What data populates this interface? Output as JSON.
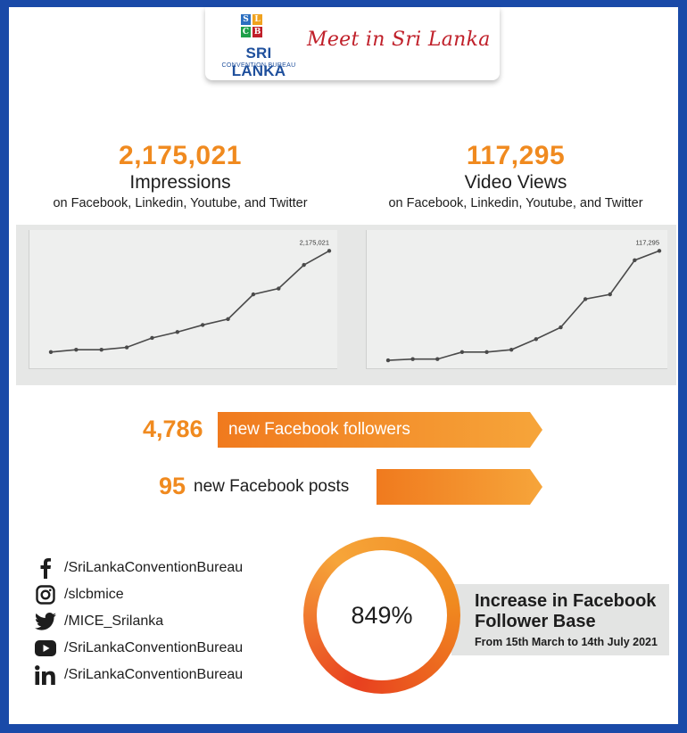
{
  "header": {
    "logo_letters": [
      "S",
      "L",
      "C",
      "B"
    ],
    "logo_name": "SRI LANKA",
    "logo_sub": "CONVENTION BUREAU",
    "tagline": "Meet in Sri Lanka",
    "colors": {
      "blue": "#1e4f9c",
      "red": "#c0202a",
      "frame": "#1a4aa8"
    }
  },
  "impressions": {
    "value": "2,175,021",
    "label": "Impressions",
    "platforms": "on Facebook, Linkedin, Youtube, and Twitter"
  },
  "video_views": {
    "value": "117,295",
    "label": "Video Views",
    "platforms": "on Facebook, Linkedin, Youtube, and Twitter"
  },
  "chart_data": [
    {
      "type": "line",
      "end_label": "2,175,021",
      "x": [
        1,
        2,
        3,
        4,
        5,
        6,
        7,
        8,
        9,
        10,
        11,
        12
      ],
      "values": [
        10,
        12,
        12,
        14,
        22,
        27,
        33,
        38,
        59,
        64,
        84,
        96
      ],
      "ylim": [
        0,
        100
      ],
      "grid": false,
      "color": "#4a4a4a"
    },
    {
      "type": "line",
      "end_label": "117,295",
      "x": [
        1,
        2,
        3,
        4,
        5,
        6,
        7,
        8,
        9,
        10,
        11,
        12
      ],
      "values": [
        3,
        4,
        4,
        10,
        10,
        12,
        21,
        31,
        55,
        59,
        88,
        96
      ],
      "ylim": [
        0,
        100
      ],
      "grid": false,
      "color": "#4a4a4a"
    }
  ],
  "followers": {
    "value": "4,786",
    "text": "new Facebook followers"
  },
  "posts": {
    "value": "95",
    "text": "new Facebook posts"
  },
  "accent": "#f08a1f",
  "social": [
    {
      "icon": "facebook-icon",
      "handle": "/SriLankaConventionBureau"
    },
    {
      "icon": "instagram-icon",
      "handle": "/slcbmice"
    },
    {
      "icon": "twitter-icon",
      "handle": "/MICE_Srilanka"
    },
    {
      "icon": "youtube-icon",
      "handle": "/SriLankaConventionBureau"
    },
    {
      "icon": "linkedin-icon",
      "handle": "/SriLankaConventionBureau"
    }
  ],
  "growth": {
    "value": "849%",
    "title_line1": "Increase in Facebook",
    "title_line2": "Follower Base",
    "period": "From 15th March to 14th July 2021"
  }
}
